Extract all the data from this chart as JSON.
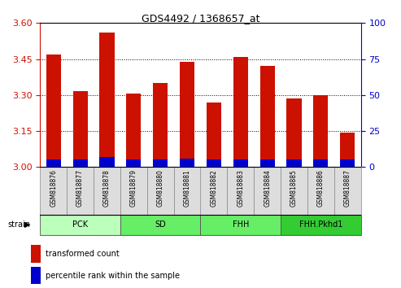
{
  "title": "GDS4492 / 1368657_at",
  "samples": [
    "GSM818876",
    "GSM818877",
    "GSM818878",
    "GSM818879",
    "GSM818880",
    "GSM818881",
    "GSM818882",
    "GSM818883",
    "GSM818884",
    "GSM818885",
    "GSM818886",
    "GSM818887"
  ],
  "transformed_count": [
    3.47,
    3.315,
    3.56,
    3.305,
    3.35,
    3.44,
    3.27,
    3.46,
    3.42,
    3.285,
    3.3,
    3.145
  ],
  "percentile_rank": [
    5,
    5,
    7,
    5,
    5,
    6,
    5,
    5,
    5,
    5,
    5,
    5
  ],
  "ylim_left": [
    3.0,
    3.6
  ],
  "ylim_right": [
    0,
    100
  ],
  "yticks_left": [
    3.0,
    3.15,
    3.3,
    3.45,
    3.6
  ],
  "yticks_right": [
    0,
    25,
    50,
    75,
    100
  ],
  "bar_color_red": "#cc1100",
  "bar_color_blue": "#0000cc",
  "groups": [
    {
      "label": "PCK",
      "start": 0,
      "end": 3,
      "color": "#bbffbb"
    },
    {
      "label": "SD",
      "start": 3,
      "end": 6,
      "color": "#66ee66"
    },
    {
      "label": "FHH",
      "start": 6,
      "end": 9,
      "color": "#66ee66"
    },
    {
      "label": "FHH.Pkhd1",
      "start": 9,
      "end": 12,
      "color": "#33cc33"
    }
  ],
  "strain_label": "strain",
  "legend_red": "transformed count",
  "legend_blue": "percentile rank within the sample",
  "tick_color_left": "#cc1100",
  "tick_color_right": "#0000cc",
  "grid_color": "#000000",
  "bar_width": 0.55,
  "fig_width": 4.93,
  "fig_height": 3.54
}
